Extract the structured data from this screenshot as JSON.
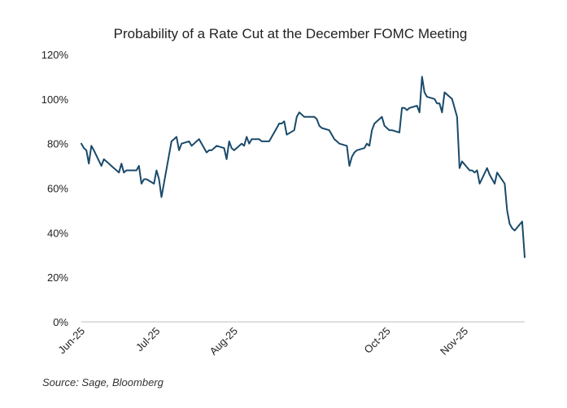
{
  "chart_data": {
    "type": "line",
    "title": "Probability of a Rate Cut at the December FOMC Meeting",
    "xlabel": "",
    "ylabel": "",
    "ylim": [
      0,
      120
    ],
    "y_ticks": [
      "0%",
      "20%",
      "40%",
      "60%",
      "80%",
      "100%",
      "120%"
    ],
    "y_tick_values": [
      0,
      20,
      40,
      60,
      80,
      100,
      120
    ],
    "x_ticks": [
      "Jun-25",
      "Jul-25",
      "Aug-25",
      "Oct-25",
      "Nov-25"
    ],
    "x_tick_dates": [
      "2025-06-01",
      "2025-07-01",
      "2025-08-01",
      "2025-10-01",
      "2025-11-01"
    ],
    "grid": false,
    "legend": "none",
    "line_color": "#1a4a6b",
    "series": [
      {
        "x": [
          "2025-06-01",
          "2025-06-02",
          "2025-06-03",
          "2025-06-04",
          "2025-06-05",
          "2025-06-06",
          "2025-06-09",
          "2025-06-10",
          "2025-06-11",
          "2025-06-12",
          "2025-06-13",
          "2025-06-16",
          "2025-06-17",
          "2025-06-18",
          "2025-06-19",
          "2025-06-20",
          "2025-06-23",
          "2025-06-24",
          "2025-06-25",
          "2025-06-26",
          "2025-06-27",
          "2025-06-30",
          "2025-07-01",
          "2025-07-02",
          "2025-07-03",
          "2025-07-07",
          "2025-07-08",
          "2025-07-09",
          "2025-07-10",
          "2025-07-11",
          "2025-07-14",
          "2025-07-15",
          "2025-07-16",
          "2025-07-17",
          "2025-07-18",
          "2025-07-21",
          "2025-07-22",
          "2025-07-23",
          "2025-07-24",
          "2025-07-25",
          "2025-07-28",
          "2025-07-29",
          "2025-07-30",
          "2025-07-31",
          "2025-08-01",
          "2025-08-04",
          "2025-08-05",
          "2025-08-06",
          "2025-08-07",
          "2025-08-08",
          "2025-08-11",
          "2025-08-12",
          "2025-08-13",
          "2025-08-14",
          "2025-08-15",
          "2025-08-18",
          "2025-08-19",
          "2025-08-20",
          "2025-08-21",
          "2025-08-22",
          "2025-08-25",
          "2025-08-26",
          "2025-08-27",
          "2025-08-28",
          "2025-08-29",
          "2025-09-02",
          "2025-09-03",
          "2025-09-04",
          "2025-09-05",
          "2025-09-08",
          "2025-09-09",
          "2025-09-10",
          "2025-09-11",
          "2025-09-12",
          "2025-09-15",
          "2025-09-16",
          "2025-09-17",
          "2025-09-18",
          "2025-09-19",
          "2025-09-22",
          "2025-09-23",
          "2025-09-24",
          "2025-09-25",
          "2025-09-26",
          "2025-09-29",
          "2025-09-30",
          "2025-10-01",
          "2025-10-02",
          "2025-10-03",
          "2025-10-06",
          "2025-10-07",
          "2025-10-08",
          "2025-10-09",
          "2025-10-10",
          "2025-10-13",
          "2025-10-14",
          "2025-10-15",
          "2025-10-16",
          "2025-10-17",
          "2025-10-20",
          "2025-10-21",
          "2025-10-22",
          "2025-10-23",
          "2025-10-24",
          "2025-10-27",
          "2025-10-28",
          "2025-10-29",
          "2025-10-30",
          "2025-10-31",
          "2025-11-03",
          "2025-11-04",
          "2025-11-05",
          "2025-11-06",
          "2025-11-07",
          "2025-11-10",
          "2025-11-11",
          "2025-11-12",
          "2025-11-13",
          "2025-11-14",
          "2025-11-17",
          "2025-11-18",
          "2025-11-19",
          "2025-11-20",
          "2025-11-21",
          "2025-11-24",
          "2025-11-25"
        ],
        "values": [
          80,
          78,
          77,
          71,
          79,
          77,
          70,
          73,
          72,
          71,
          70,
          67,
          71,
          67,
          68,
          68,
          68,
          70,
          62,
          64,
          64,
          62,
          68,
          64,
          56,
          81,
          82,
          83,
          77,
          80,
          81,
          79,
          80,
          81,
          82,
          76,
          77,
          77,
          78,
          79,
          78,
          73,
          81,
          78,
          77,
          80,
          79,
          83,
          80,
          82,
          82,
          81,
          81,
          81,
          81,
          87,
          89,
          89,
          90,
          84,
          86,
          92,
          94,
          93,
          92,
          92,
          91,
          88,
          87,
          86,
          84,
          82,
          81,
          80,
          79,
          70,
          74,
          76,
          77,
          78,
          80,
          79,
          86,
          89,
          92,
          88,
          87,
          86,
          86,
          85,
          96,
          96,
          95,
          96,
          97,
          94,
          110,
          103,
          101,
          100,
          98,
          98,
          94,
          103,
          100,
          96,
          92,
          69,
          72,
          68,
          68,
          67,
          68,
          62,
          69,
          66,
          64,
          62,
          67,
          62,
          50,
          44,
          42,
          41,
          45,
          29
        ]
      }
    ]
  },
  "footer": {
    "source": "Source: Sage, Bloomberg"
  }
}
